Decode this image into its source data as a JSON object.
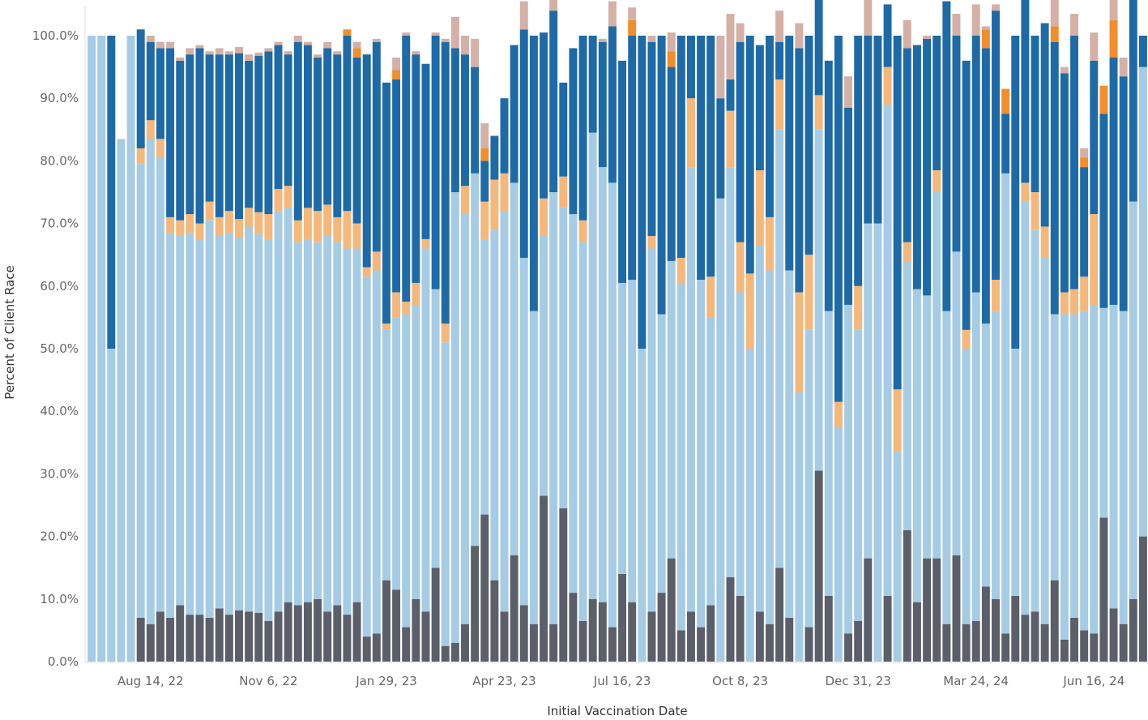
{
  "chart_data": {
    "type": "bar",
    "stacked": true,
    "normalized": true,
    "xlabel": "Initial Vaccination Date",
    "ylabel": "Percent of Client Race",
    "ylim": [
      0,
      1
    ],
    "y_ticks": [
      "0.0%",
      "10.0%",
      "20.0%",
      "30.0%",
      "40.0%",
      "50.0%",
      "60.0%",
      "70.0%",
      "80.0%",
      "90.0%",
      "100.0%"
    ],
    "x_tick_labels": [
      "Aug 14, 22",
      "Nov 6, 22",
      "Jan 29, 23",
      "Apr 23, 23",
      "Jul 16, 23",
      "Oct 8, 23",
      "Dec 31, 23",
      "Mar 24, 24",
      "Jun 16, 24"
    ],
    "x_tick_bar_index": [
      6,
      18,
      30,
      42,
      54,
      66,
      78,
      90,
      102
    ],
    "grid": false,
    "legend": "none",
    "series": [
      {
        "color": "#5b5f69",
        "values": [
          0,
          0,
          0,
          0,
          0,
          0.07,
          0.06,
          0.08,
          0.07,
          0.09,
          0.075,
          0.075,
          0.07,
          0.085,
          0.075,
          0.082,
          0.08,
          0.078,
          0.065,
          0.08,
          0.095,
          0.09,
          0.095,
          0.1,
          0.08,
          0.09,
          0.075,
          0.095,
          0.04,
          0.045,
          0.13,
          0.115,
          0.055,
          0.1,
          0.08,
          0.15,
          0.025,
          0.03,
          0.06,
          0.185,
          0.235,
          0.13,
          0.08,
          0.17,
          0.09,
          0.06,
          0.265,
          0.06,
          0.245,
          0.11,
          0.065,
          0.1,
          0.095,
          0.055,
          0.14,
          0.095,
          0,
          0.08,
          0.11,
          0.165,
          0.05,
          0.08,
          0.055,
          0.09,
          0,
          0.135,
          0.105,
          0,
          0.08,
          0.06,
          0.15,
          0.07,
          0,
          0.055,
          0.305,
          0.105,
          0,
          0.045,
          0.065,
          0.165,
          0,
          0.105,
          0,
          0.21,
          0.095,
          0.165,
          0.165,
          0.06,
          0.17,
          0.06,
          0.065,
          0.12,
          0.1,
          0.045,
          0.105,
          0.075,
          0.08,
          0.06,
          0.13,
          0.035,
          0.07,
          0.05,
          0.045,
          0.23,
          0.085,
          0.06,
          0.1,
          0.2
        ]
      },
      {
        "color": "#a6cbe4",
        "values": [
          1,
          1,
          0.5,
          0.835,
          1,
          0.725,
          0.775,
          0.725,
          0.615,
          0.59,
          0.61,
          0.6,
          0.635,
          0.595,
          0.61,
          0.595,
          0.615,
          0.605,
          0.61,
          0.64,
          0.63,
          0.58,
          0.58,
          0.57,
          0.6,
          0.58,
          0.585,
          0.565,
          0.575,
          0.58,
          0.4,
          0.435,
          0.5,
          0.47,
          0.58,
          0.445,
          0.485,
          0.72,
          0.655,
          0.595,
          0.44,
          0.56,
          0.64,
          0.595,
          0.555,
          0.5,
          0.415,
          0.69,
          0.48,
          0.605,
          0.605,
          0.745,
          0.695,
          0.71,
          0.465,
          0.515,
          0.5,
          0.58,
          0.445,
          0.475,
          0.555,
          0.71,
          0.555,
          0.46,
          0.74,
          0.655,
          0.485,
          0.5,
          0.585,
          0.565,
          0.7,
          0.555,
          0.43,
          0.475,
          0.545,
          0.455,
          0.375,
          0.525,
          0.465,
          0.535,
          0.7,
          0.785,
          0.335,
          0.43,
          0.5,
          0.42,
          0.585,
          0.5,
          0.485,
          0.44,
          0.525,
          0.42,
          0.46,
          0.735,
          0.395,
          0.66,
          0.61,
          0.585,
          0.425,
          0.52,
          0.485,
          0.51,
          0.525,
          0.335,
          0.485,
          0.5,
          0.635,
          0.75
        ]
      },
      {
        "color": "#f5b77a",
        "values": [
          0,
          0,
          0,
          0,
          0,
          0.025,
          0.03,
          0.03,
          0.025,
          0.025,
          0.03,
          0.025,
          0.03,
          0.03,
          0.035,
          0.03,
          0.03,
          0.035,
          0.04,
          0.035,
          0.035,
          0.035,
          0.05,
          0.05,
          0.05,
          0.04,
          0.06,
          0.04,
          0.015,
          0.03,
          0.01,
          0.04,
          0.02,
          0.035,
          0.015,
          0,
          0.03,
          0,
          0.045,
          0,
          0.06,
          0.08,
          0.06,
          0,
          0,
          0,
          0.06,
          0,
          0.05,
          0,
          0.035,
          0,
          0,
          0,
          0,
          0,
          0,
          0.02,
          0,
          0,
          0.04,
          0.11,
          0,
          0.065,
          0,
          0.09,
          0.08,
          0.12,
          0.12,
          0.085,
          0.08,
          0,
          0.16,
          0.12,
          0.055,
          0,
          0.04,
          0,
          0.07,
          0,
          0,
          0.06,
          0.1,
          0.03,
          0,
          0,
          0.035,
          0,
          0,
          0.03,
          0,
          0,
          0.05,
          0,
          0,
          0.03,
          0.06,
          0.05,
          0,
          0.035,
          0.04,
          0.055,
          0.145,
          0,
          0,
          0,
          0,
          0
        ]
      },
      {
        "color": "#1e6aa7",
        "values": [
          0,
          0,
          0.5,
          0,
          0,
          0.19,
          0.125,
          0.145,
          0.27,
          0.255,
          0.255,
          0.28,
          0.235,
          0.26,
          0.25,
          0.265,
          0.235,
          0.25,
          0.26,
          0.23,
          0.21,
          0.285,
          0.26,
          0.245,
          0.25,
          0.26,
          0.28,
          0.265,
          0.34,
          0.335,
          0.385,
          0.34,
          0.425,
          0.365,
          0.28,
          0.405,
          0.45,
          0.23,
          0.21,
          0.17,
          0.065,
          0.07,
          0.12,
          0.22,
          0.365,
          0.44,
          0.265,
          0.29,
          0.15,
          0.265,
          0.295,
          0.155,
          0.2,
          0.25,
          0.355,
          0.39,
          0.5,
          0.31,
          0.445,
          0.31,
          0.355,
          0.1,
          0.39,
          0.385,
          0.16,
          0.05,
          0.32,
          0.38,
          0.2,
          0.29,
          0.06,
          0.375,
          0.39,
          0.35,
          0.36,
          0.4,
          0.585,
          0.315,
          0.4,
          0.3,
          0.3,
          0.1,
          0.565,
          0.31,
          0.39,
          0.41,
          0.215,
          0.495,
          0.345,
          0.43,
          0.41,
          0.44,
          0.43,
          0.095,
          0.5,
          0.3,
          0.25,
          0.325,
          0.435,
          0.35,
          0.405,
          0.175,
          0.245,
          0.31,
          0.395,
          0.375,
          0.405,
          0.05
        ]
      },
      {
        "color": "#f28e2b",
        "values": [
          0,
          0,
          0,
          0,
          0,
          0,
          0,
          0,
          0,
          0,
          0,
          0,
          0,
          0,
          0,
          0,
          0,
          0,
          0,
          0,
          0,
          0,
          0,
          0,
          0,
          0,
          0.01,
          0.015,
          0,
          0,
          0,
          0.015,
          0,
          0,
          0,
          0,
          0,
          0,
          0,
          0,
          0.02,
          0,
          0,
          0,
          0,
          0,
          0,
          0,
          0,
          0,
          0,
          0,
          0,
          0,
          0,
          0.025,
          0,
          0,
          0,
          0.025,
          0,
          0,
          0,
          0,
          0,
          0,
          0,
          0,
          0,
          0,
          0,
          0,
          0,
          0,
          0,
          0,
          0,
          0,
          0,
          0,
          0,
          0,
          0,
          0,
          0,
          0,
          0,
          0,
          0,
          0,
          0,
          0.03,
          0,
          0.04,
          0,
          0.01,
          0,
          0,
          0.025,
          0,
          0,
          0.015,
          0,
          0.045,
          0.06,
          0,
          0,
          0
        ]
      },
      {
        "color": "#d4b0a6",
        "values": [
          0,
          0,
          0,
          0,
          0,
          0,
          0.01,
          0.01,
          0.01,
          0.005,
          0.01,
          0.005,
          0.005,
          0.01,
          0.005,
          0.01,
          0.01,
          0.005,
          0.005,
          0.005,
          0.005,
          0.01,
          0.005,
          0.005,
          0.01,
          0.005,
          0,
          0.01,
          0,
          0.005,
          0,
          0.02,
          0.005,
          0.005,
          0,
          0.005,
          0.005,
          0.05,
          0.03,
          0.045,
          0.04,
          0,
          0,
          0,
          0.045,
          0,
          0,
          0.025,
          0,
          0,
          0,
          0,
          0.005,
          0.04,
          0,
          0.02,
          0,
          0.01,
          0,
          0.03,
          0,
          0,
          0,
          0,
          0.1,
          0.105,
          0.03,
          0,
          0,
          0,
          0.05,
          0,
          0.04,
          0,
          0.075,
          0,
          0,
          0.05,
          0,
          0.06,
          0,
          0,
          0,
          0.045,
          0,
          0.005,
          0,
          0,
          0.035,
          0,
          0.05,
          0.005,
          0.01,
          0,
          0,
          0.03,
          0,
          0,
          0.045,
          0.01,
          0.035,
          0.015,
          0.045,
          0,
          0.035,
          0.03,
          0,
          0
        ]
      }
    ]
  }
}
